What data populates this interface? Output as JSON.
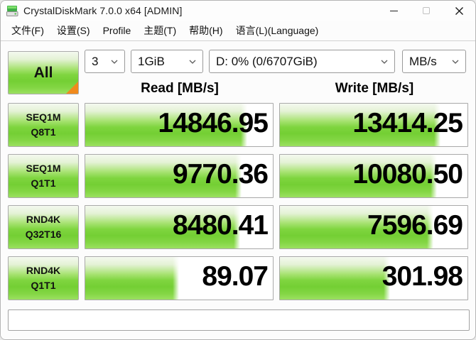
{
  "window": {
    "title": "CrystalDiskMark 7.0.0 x64 [ADMIN]"
  },
  "menu": {
    "items": [
      "文件(F)",
      "设置(S)",
      "Profile",
      "主题(T)",
      "帮助(H)",
      "语言(L)(Language)"
    ]
  },
  "controls": {
    "all_label": "All",
    "test_count": "3",
    "test_size": "1GiB",
    "target_drive": "D: 0% (0/6707GiB)",
    "unit": "MB/s"
  },
  "headers": {
    "read": "Read [MB/s]",
    "write": "Write [MB/s]"
  },
  "results": [
    {
      "test": "SEQ1M",
      "queue_thread": "Q8T1",
      "read": "14846.95",
      "write": "13414.25"
    },
    {
      "test": "SEQ1M",
      "queue_thread": "Q1T1",
      "read": "9770.36",
      "write": "10080.50"
    },
    {
      "test": "RND4K",
      "queue_thread": "Q32T16",
      "read": "8480.41",
      "write": "7596.69"
    },
    {
      "test": "RND4K",
      "queue_thread": "Q1T1",
      "read": "89.07",
      "write": "301.98"
    }
  ],
  "comment": {
    "value": ""
  },
  "colors": {
    "bar_green": "#7fd53f",
    "accent_orange": "#f08a1d"
  }
}
